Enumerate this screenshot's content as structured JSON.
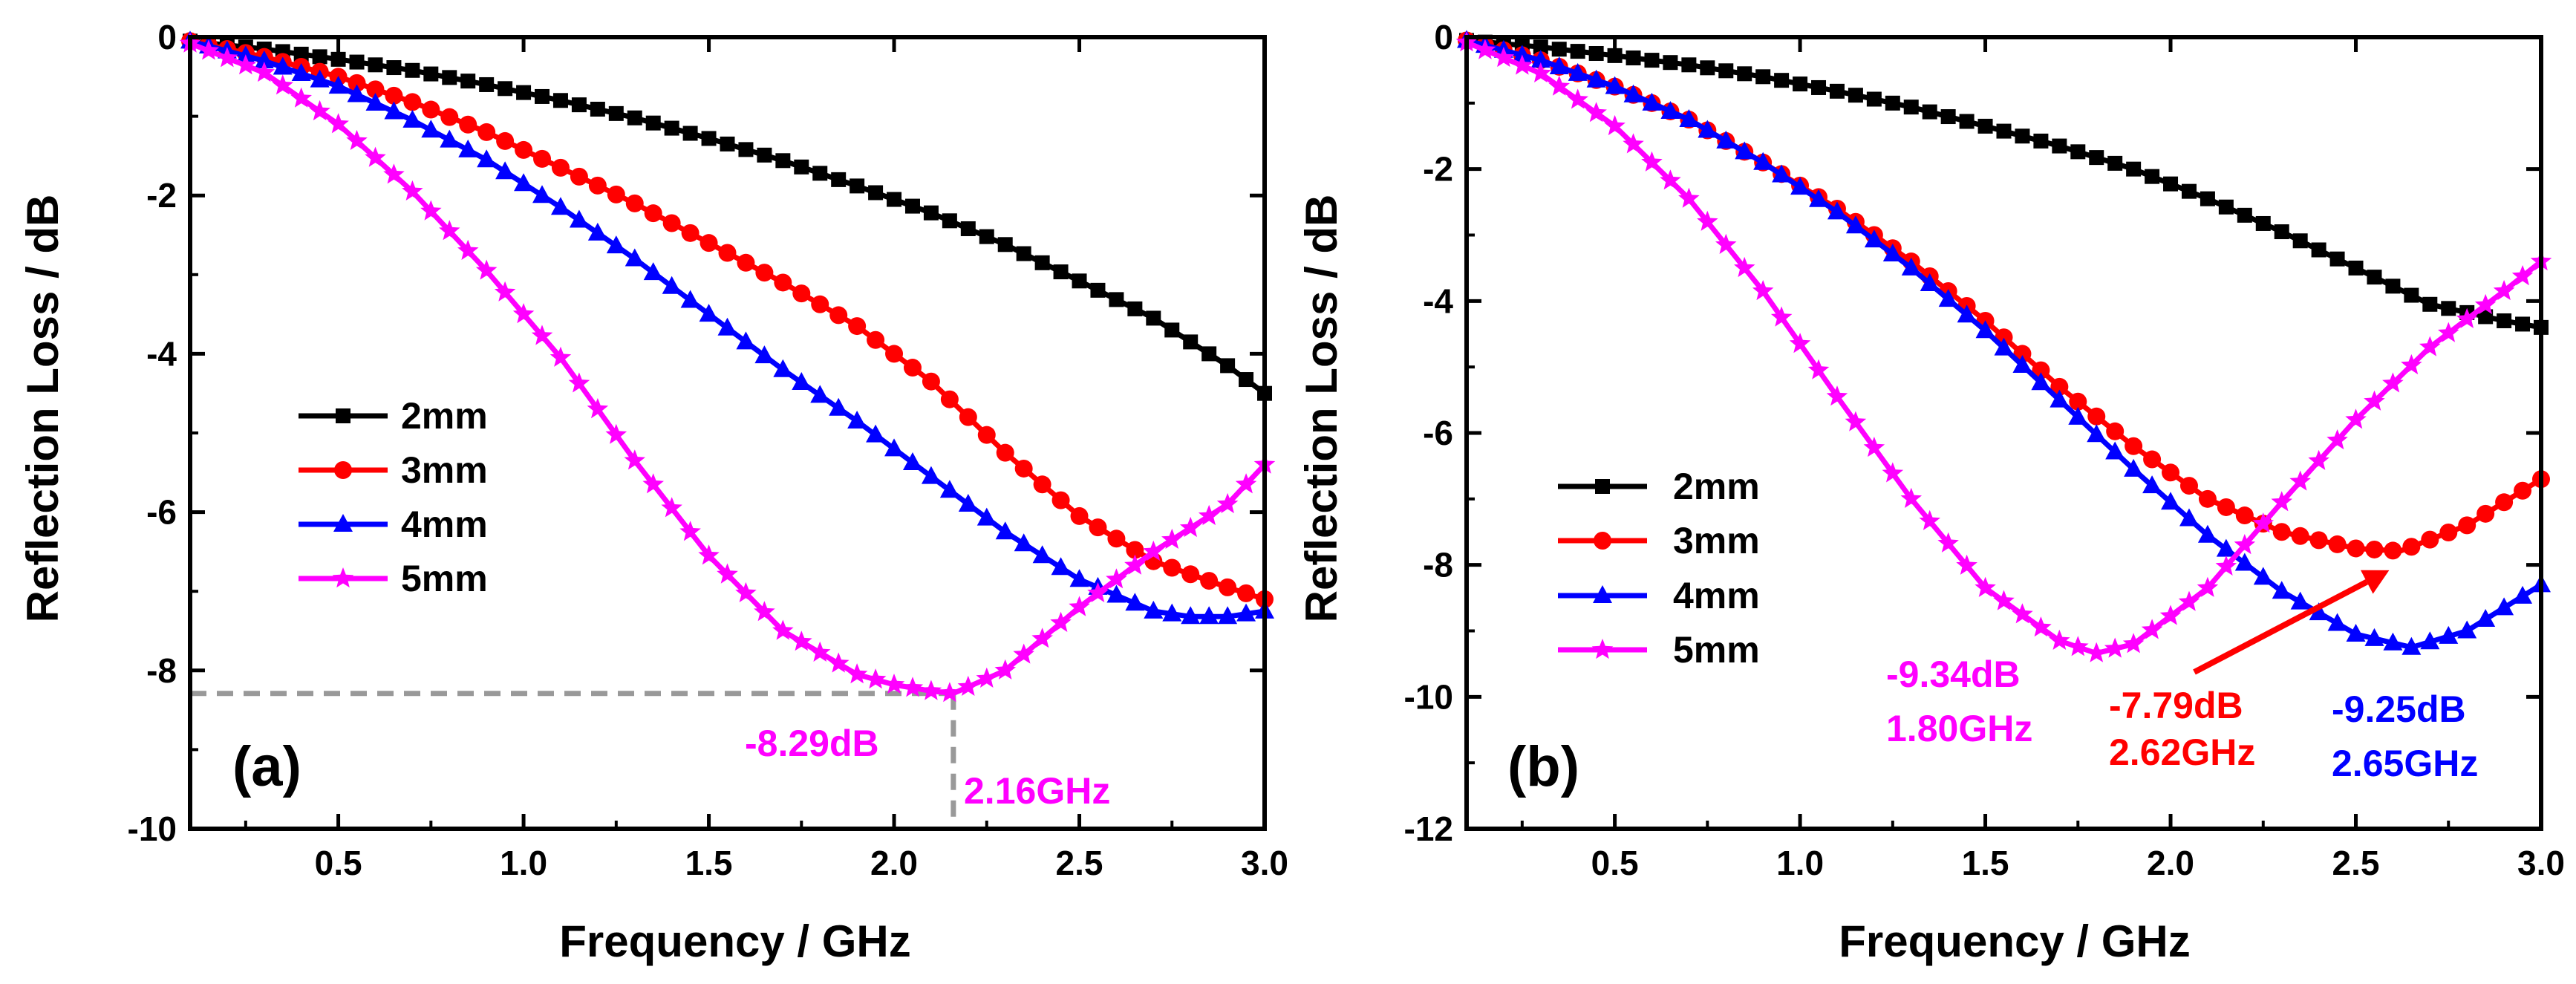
{
  "chart_data": [
    {
      "type": "line",
      "panel_label": "(a)",
      "xlabel": "Frequency / GHz",
      "ylabel": "Reflection Loss / dB",
      "xlim": [
        0.1,
        3.0
      ],
      "ylim": [
        -10,
        0
      ],
      "xticks": [
        0.5,
        1.0,
        1.5,
        2.0,
        2.5,
        3.0
      ],
      "xtick_labels": [
        "0.5",
        "1.0",
        "1.5",
        "2.0",
        "2.5",
        "3.0"
      ],
      "yticks": [
        0,
        -2,
        -4,
        -6,
        -8,
        -10
      ],
      "ytick_labels": [
        "0",
        "-2",
        "-4",
        "-6",
        "-8",
        "-10"
      ],
      "legend_position": "center-left",
      "series": [
        {
          "name": "2mm",
          "color": "#000000",
          "marker": "square",
          "x": [
            0.1,
            0.3,
            0.5,
            0.7,
            0.9,
            1.1,
            1.3,
            1.5,
            1.7,
            1.9,
            2.1,
            2.3,
            2.5,
            2.7,
            2.9,
            3.0
          ],
          "y": [
            -0.05,
            -0.15,
            -0.28,
            -0.42,
            -0.6,
            -0.8,
            -1.02,
            -1.28,
            -1.56,
            -1.88,
            -2.22,
            -2.62,
            -3.08,
            -3.55,
            -4.15,
            -4.5
          ]
        },
        {
          "name": "3mm",
          "color": "#ff0000",
          "marker": "circle",
          "x": [
            0.1,
            0.3,
            0.5,
            0.7,
            0.9,
            1.1,
            1.3,
            1.5,
            1.7,
            1.9,
            2.1,
            2.3,
            2.5,
            2.7,
            2.9,
            3.0
          ],
          "y": [
            -0.05,
            -0.25,
            -0.5,
            -0.82,
            -1.2,
            -1.65,
            -2.1,
            -2.6,
            -3.1,
            -3.65,
            -4.35,
            -5.25,
            -6.05,
            -6.62,
            -6.95,
            -7.1
          ]
        },
        {
          "name": "4mm",
          "color": "#0000ff",
          "marker": "triangle",
          "x": [
            0.1,
            0.3,
            0.5,
            0.7,
            0.9,
            1.1,
            1.3,
            1.5,
            1.7,
            1.9,
            2.1,
            2.3,
            2.5,
            2.7,
            2.8,
            2.9,
            3.0
          ],
          "y": [
            -0.05,
            -0.3,
            -0.62,
            -1.05,
            -1.55,
            -2.15,
            -2.8,
            -3.5,
            -4.2,
            -4.85,
            -5.55,
            -6.25,
            -6.85,
            -7.25,
            -7.32,
            -7.32,
            -7.25
          ]
        },
        {
          "name": "5mm",
          "color": "#ff00ff",
          "marker": "star",
          "x": [
            0.1,
            0.3,
            0.5,
            0.7,
            0.9,
            1.1,
            1.3,
            1.5,
            1.7,
            1.9,
            2.0,
            2.1,
            2.16,
            2.3,
            2.5,
            2.7,
            2.9,
            3.0
          ],
          "y": [
            -0.08,
            -0.45,
            -1.1,
            -1.95,
            -2.95,
            -4.05,
            -5.35,
            -6.55,
            -7.5,
            -8.05,
            -8.18,
            -8.26,
            -8.29,
            -8.0,
            -7.2,
            -6.5,
            -5.9,
            -5.4
          ]
        }
      ],
      "annotations": [
        {
          "text": "-8.29dB",
          "color": "#ff00ff"
        },
        {
          "text": "2.16GHz",
          "color": "#ff00ff"
        }
      ],
      "guide_point": {
        "x": 2.16,
        "y": -8.29
      }
    },
    {
      "type": "line",
      "panel_label": "(b)",
      "xlabel": "Frequency / GHz",
      "ylabel": "Reflection Loss / dB",
      "xlim": [
        0.1,
        3.0
      ],
      "ylim": [
        -12,
        0
      ],
      "xticks": [
        0.5,
        1.0,
        1.5,
        2.0,
        2.5,
        3.0
      ],
      "xtick_labels": [
        "0.5",
        "1.0",
        "1.5",
        "2.0",
        "2.5",
        "3.0"
      ],
      "yticks": [
        0,
        -2,
        -4,
        -6,
        -8,
        -10,
        -12
      ],
      "ytick_labels": [
        "0",
        "-2",
        "-4",
        "-6",
        "-8",
        "-10",
        "-12"
      ],
      "legend_position": "center-left",
      "series": [
        {
          "name": "2mm",
          "color": "#000000",
          "marker": "square",
          "x": [
            0.1,
            0.3,
            0.5,
            0.7,
            0.9,
            1.1,
            1.3,
            1.5,
            1.7,
            1.9,
            2.1,
            2.3,
            2.5,
            2.7,
            2.9,
            3.0
          ],
          "y": [
            -0.05,
            -0.15,
            -0.28,
            -0.42,
            -0.6,
            -0.82,
            -1.06,
            -1.35,
            -1.65,
            -2.0,
            -2.45,
            -2.95,
            -3.5,
            -4.05,
            -4.3,
            -4.4
          ]
        },
        {
          "name": "3mm",
          "color": "#ff0000",
          "marker": "circle",
          "x": [
            0.1,
            0.3,
            0.5,
            0.7,
            0.9,
            1.1,
            1.3,
            1.5,
            1.7,
            1.9,
            2.1,
            2.3,
            2.5,
            2.62,
            2.8,
            3.0
          ],
          "y": [
            -0.05,
            -0.35,
            -0.75,
            -1.25,
            -1.9,
            -2.6,
            -3.4,
            -4.3,
            -5.3,
            -6.2,
            -7.0,
            -7.5,
            -7.75,
            -7.79,
            -7.4,
            -6.7
          ]
        },
        {
          "name": "4mm",
          "color": "#0000ff",
          "marker": "triangle",
          "x": [
            0.1,
            0.3,
            0.5,
            0.7,
            0.9,
            1.1,
            1.3,
            1.5,
            1.7,
            1.9,
            2.1,
            2.3,
            2.5,
            2.65,
            2.8,
            3.0
          ],
          "y": [
            -0.05,
            -0.35,
            -0.75,
            -1.25,
            -1.9,
            -2.65,
            -3.5,
            -4.45,
            -5.5,
            -6.55,
            -7.55,
            -8.4,
            -9.05,
            -9.25,
            -9.0,
            -8.3
          ]
        },
        {
          "name": "5mm",
          "color": "#ff00ff",
          "marker": "star",
          "x": [
            0.1,
            0.3,
            0.5,
            0.7,
            0.9,
            1.1,
            1.3,
            1.5,
            1.7,
            1.8,
            1.9,
            2.1,
            2.3,
            2.5,
            2.7,
            2.9,
            3.0
          ],
          "y": [
            -0.08,
            -0.55,
            -1.35,
            -2.45,
            -3.85,
            -5.45,
            -7.0,
            -8.35,
            -9.15,
            -9.34,
            -9.2,
            -8.35,
            -7.05,
            -5.8,
            -4.7,
            -3.85,
            -3.4
          ]
        }
      ],
      "annotations": [
        {
          "text": "-9.34dB",
          "color": "#ff00ff"
        },
        {
          "text": "1.80GHz",
          "color": "#ff00ff"
        },
        {
          "text": "-7.79dB",
          "color": "#ff0000"
        },
        {
          "text": "2.62GHz",
          "color": "#ff0000"
        },
        {
          "text": "-9.25dB",
          "color": "#0000ff"
        },
        {
          "text": "2.65GHz",
          "color": "#0000ff"
        }
      ],
      "arrow_target": {
        "x": 2.59,
        "y": -7.8
      }
    }
  ]
}
